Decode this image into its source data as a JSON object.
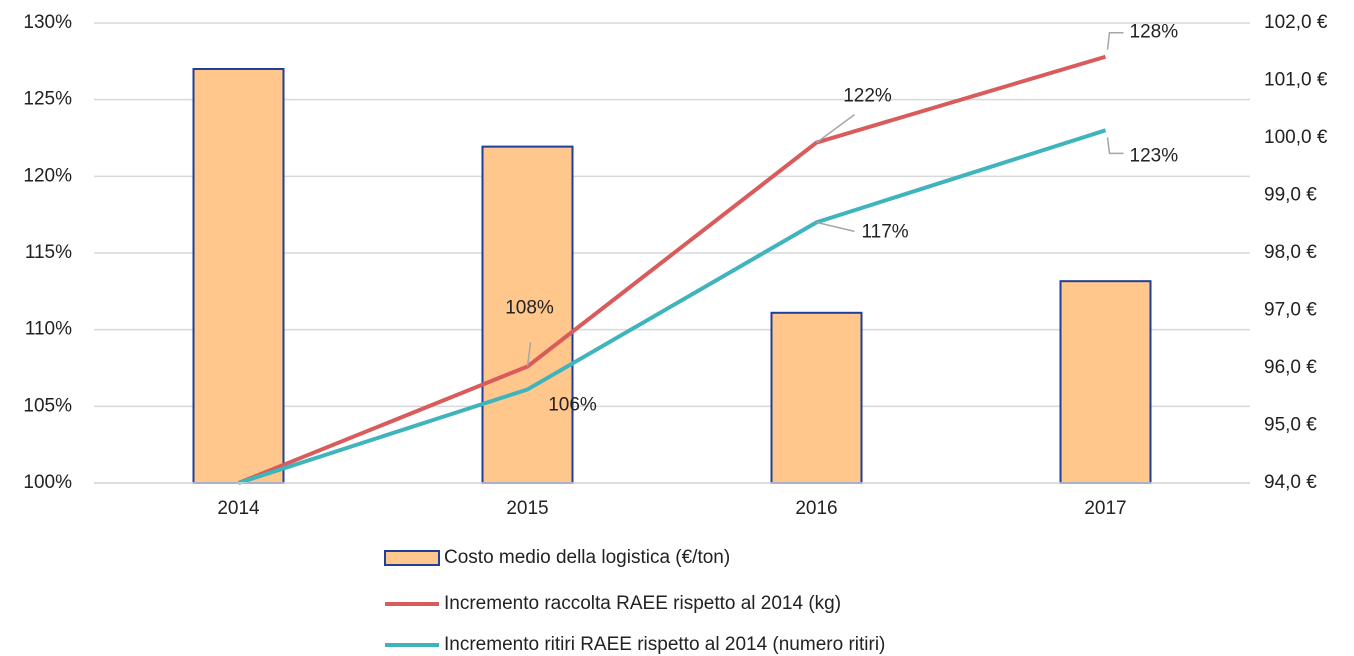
{
  "chart_data": {
    "type": "combo",
    "categories": [
      "2014",
      "2015",
      "2016",
      "2017"
    ],
    "ylim": [
      100,
      130
    ],
    "yticks": [
      {
        "value": 100,
        "label": "100%"
      },
      {
        "value": 105,
        "label": "105%"
      },
      {
        "value": 110,
        "label": "110%"
      },
      {
        "value": 115,
        "label": "115%"
      },
      {
        "value": 120,
        "label": "120%"
      },
      {
        "value": 125,
        "label": "125%"
      },
      {
        "value": 130,
        "label": "130%"
      }
    ],
    "y2lim": [
      94,
      102
    ],
    "y2ticks": [
      {
        "value": 94,
        "label": "94,0 €"
      },
      {
        "value": 95,
        "label": "95,0 €"
      },
      {
        "value": 96,
        "label": "96,0 €"
      },
      {
        "value": 97,
        "label": "97,0 €"
      },
      {
        "value": 98,
        "label": "98,0 €"
      },
      {
        "value": 99,
        "label": "99,0 €"
      },
      {
        "value": 100,
        "label": "100,0 €"
      },
      {
        "value": 101,
        "label": "101,0 €"
      },
      {
        "value": 102,
        "label": "102,0 €"
      }
    ],
    "grid": true,
    "series": [
      {
        "name": "Costo medio della logistica (€/ton)",
        "type": "bar",
        "axis": "y2",
        "color": "#ffc78c",
        "edge": "#1f3f99",
        "values": [
          101.2,
          99.85,
          96.96,
          97.51
        ]
      },
      {
        "name": "Incremento raccolta RAEE rispetto al 2014 (kg)",
        "type": "line",
        "color": "#d95b5b",
        "values": [
          100,
          107.6,
          122.2,
          127.8
        ],
        "value_labels": [
          null,
          "108%",
          "122%",
          "128%"
        ]
      },
      {
        "name": "Incremento ritiri RAEE rispetto al 2014 (numero ritiri)",
        "type": "line",
        "color": "#3fb4bd",
        "values": [
          100,
          106.1,
          117.0,
          123.0
        ],
        "value_labels": [
          null,
          "106%",
          "117%",
          "123%"
        ]
      }
    ]
  }
}
